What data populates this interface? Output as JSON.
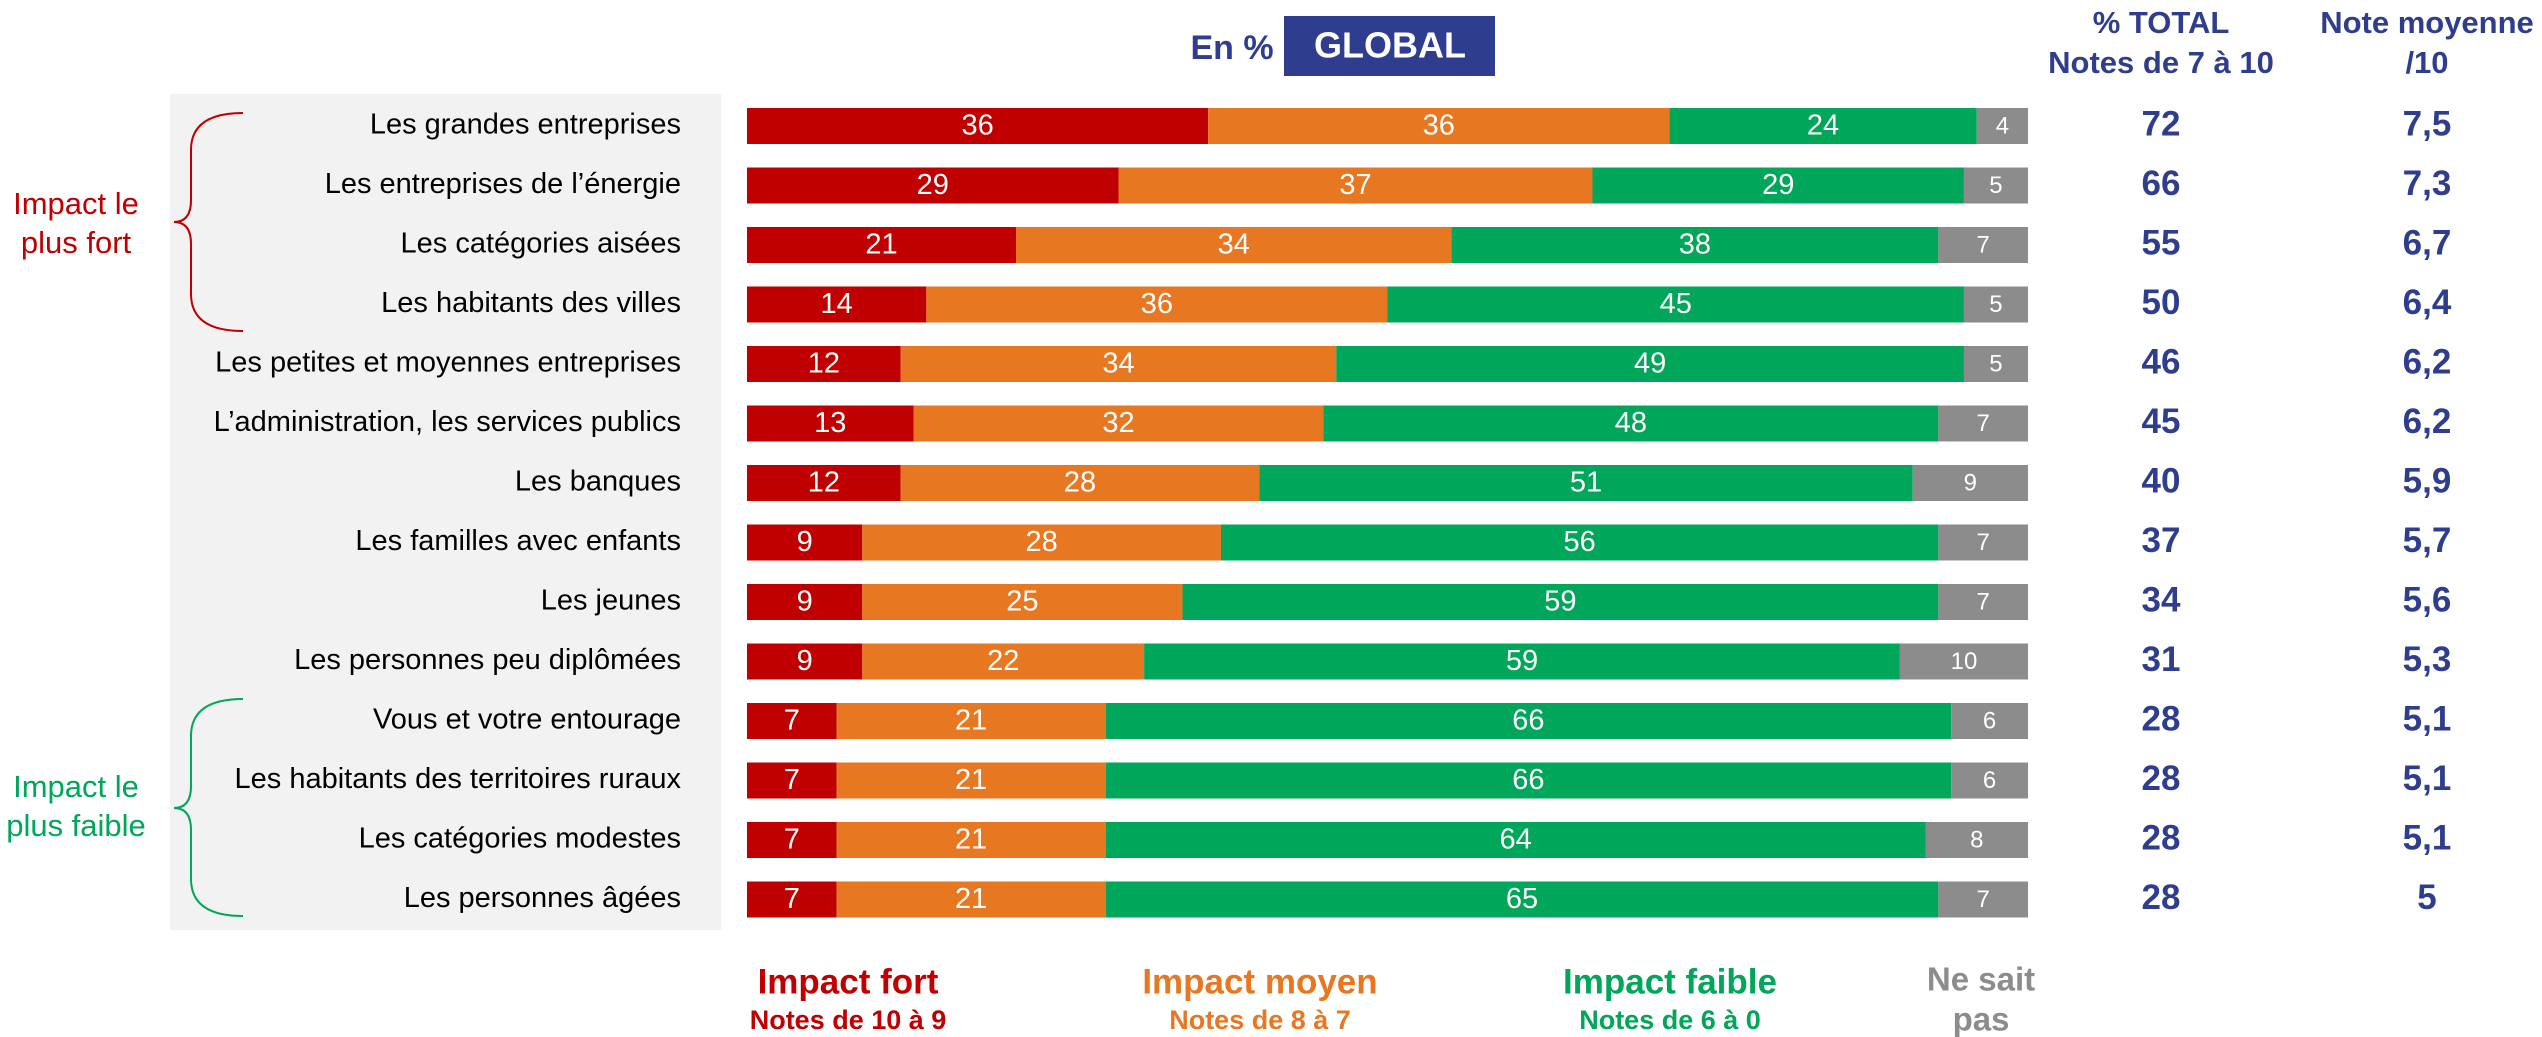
{
  "chart_data": {
    "type": "stacked_bar_horizontal",
    "unit_label": "En %",
    "title": "GLOBAL",
    "categories": [
      "Les grandes entreprises",
      "Les entreprises de l’énergie",
      "Les catégories aisées",
      "Les habitants des villes",
      "Les petites et moyennes entreprises",
      "L’administration, les services publics",
      "Les banques",
      "Les familles avec enfants",
      "Les jeunes",
      "Les personnes peu diplômées",
      "Vous et votre entourage",
      "Les habitants des territoires ruraux",
      "Les catégories modestes",
      "Les personnes âgées"
    ],
    "xlim": [
      0,
      100
    ],
    "series": [
      {
        "name": "Impact fort",
        "note": "Notes de 10 à 9",
        "color": "#c00000",
        "values": [
          36,
          29,
          21,
          14,
          12,
          13,
          12,
          9,
          9,
          9,
          7,
          7,
          7,
          7
        ]
      },
      {
        "name": "Impact moyen",
        "note": "Notes de 8 à 7",
        "color": "#e87722",
        "values": [
          36,
          37,
          34,
          36,
          34,
          32,
          28,
          28,
          25,
          22,
          21,
          21,
          21,
          21
        ]
      },
      {
        "name": "Impact faible",
        "note": "Notes de 6 à 0",
        "color": "#00a65a",
        "values": [
          24,
          29,
          38,
          45,
          49,
          48,
          51,
          56,
          59,
          59,
          66,
          66,
          64,
          65
        ]
      },
      {
        "name": [
          "Ne sait",
          "pas"
        ],
        "color": "#8c8c8c",
        "values": [
          4,
          5,
          7,
          5,
          5,
          7,
          9,
          7,
          7,
          10,
          6,
          6,
          8,
          7
        ]
      }
    ],
    "total_column": {
      "title": [
        "% TOTAL",
        "Notes de 7 à 10"
      ],
      "values": [
        72,
        66,
        55,
        50,
        46,
        45,
        40,
        37,
        34,
        31,
        28,
        28,
        28,
        28
      ]
    },
    "note_column": {
      "title": [
        "Note moyenne",
        "/10"
      ],
      "values": [
        7.5,
        7.3,
        6.7,
        6.4,
        6.2,
        6.2,
        5.9,
        5.7,
        5.6,
        5.3,
        5.1,
        5.1,
        5.1,
        5
      ],
      "value_labels": [
        "7,5",
        "7,3",
        "6,7",
        "6,4",
        "6,2",
        "6,2",
        "5,9",
        "5,7",
        "5,6",
        "5,3",
        "5,1",
        "5,1",
        "5,1",
        "5"
      ]
    },
    "annotations": [
      {
        "text": [
          "Impact le",
          "plus fort"
        ],
        "color": "#c00000"
      },
      {
        "text": [
          "Impact le",
          "plus faible"
        ],
        "color": "#00a65a"
      }
    ]
  }
}
